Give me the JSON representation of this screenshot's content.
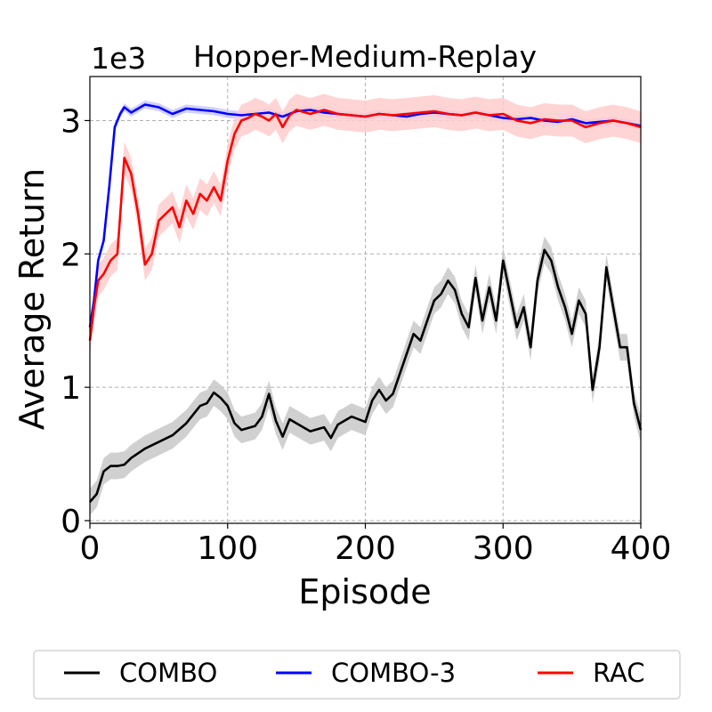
{
  "chart_data": {
    "type": "line",
    "title": "Hopper-Medium-Replay",
    "xlabel": "Episode",
    "ylabel": "Average Return",
    "y_scale_label": "1e3",
    "xlim": [
      0,
      400
    ],
    "ylim": [
      -0.02,
      3.33
    ],
    "xticks": [
      0,
      100,
      200,
      300,
      400
    ],
    "xtick_labels": [
      "0",
      "100",
      "200",
      "300",
      "400"
    ],
    "yticks": [
      0,
      1,
      2,
      3
    ],
    "ytick_labels": [
      "0",
      "1",
      "2",
      "3"
    ],
    "grid": true,
    "legend_position": "bottom",
    "series": [
      {
        "name": "COMBO",
        "color": "#000000",
        "band_color": "#c8c8c8",
        "band_halfwidth": 0.1,
        "x": [
          0,
          5,
          10,
          15,
          20,
          25,
          30,
          40,
          50,
          60,
          70,
          80,
          85,
          90,
          95,
          100,
          105,
          110,
          120,
          125,
          130,
          135,
          140,
          145,
          150,
          160,
          170,
          175,
          180,
          190,
          200,
          205,
          210,
          215,
          220,
          230,
          235,
          240,
          245,
          250,
          255,
          260,
          265,
          270,
          275,
          280,
          285,
          290,
          295,
          300,
          305,
          310,
          315,
          320,
          325,
          330,
          335,
          340,
          345,
          350,
          355,
          360,
          365,
          370,
          375,
          380,
          385,
          390,
          395,
          400
        ],
        "y": [
          0.14,
          0.2,
          0.37,
          0.41,
          0.41,
          0.42,
          0.47,
          0.54,
          0.59,
          0.64,
          0.73,
          0.86,
          0.88,
          0.96,
          0.92,
          0.86,
          0.73,
          0.68,
          0.71,
          0.78,
          0.95,
          0.75,
          0.63,
          0.76,
          0.73,
          0.67,
          0.7,
          0.62,
          0.72,
          0.78,
          0.74,
          0.9,
          0.98,
          0.9,
          0.95,
          1.25,
          1.4,
          1.35,
          1.5,
          1.65,
          1.7,
          1.8,
          1.73,
          1.55,
          1.45,
          1.82,
          1.5,
          1.75,
          1.5,
          1.95,
          1.7,
          1.45,
          1.6,
          1.3,
          1.8,
          2.03,
          1.95,
          1.75,
          1.6,
          1.4,
          1.65,
          1.55,
          0.98,
          1.3,
          1.9,
          1.6,
          1.3,
          1.3,
          0.88,
          0.68
        ]
      },
      {
        "name": "COMBO-3",
        "color": "#0000ff",
        "band_color": "#c8c8ff",
        "band_halfwidth": 0.03,
        "x": [
          0,
          3,
          6,
          10,
          14,
          18,
          22,
          25,
          30,
          40,
          50,
          60,
          70,
          80,
          90,
          100,
          110,
          120,
          130,
          140,
          150,
          160,
          170,
          180,
          190,
          200,
          210,
          220,
          230,
          240,
          250,
          260,
          270,
          280,
          290,
          300,
          310,
          320,
          330,
          340,
          350,
          360,
          370,
          380,
          390,
          400
        ],
        "y": [
          1.45,
          1.65,
          1.95,
          2.1,
          2.5,
          2.95,
          3.05,
          3.1,
          3.06,
          3.12,
          3.1,
          3.05,
          3.09,
          3.08,
          3.07,
          3.05,
          3.04,
          3.05,
          3.06,
          3.03,
          3.07,
          3.08,
          3.06,
          3.05,
          3.04,
          3.03,
          3.05,
          3.04,
          3.03,
          3.05,
          3.06,
          3.05,
          3.04,
          3.06,
          3.04,
          3.02,
          3.01,
          3.02,
          3.0,
          2.99,
          3.01,
          2.98,
          2.99,
          3.0,
          2.98,
          2.96
        ]
      },
      {
        "name": "RAC",
        "color": "#ff0000",
        "band_color": "#ffcccc",
        "band_halfwidth": 0.12,
        "x": [
          0,
          3,
          6,
          10,
          15,
          20,
          25,
          30,
          35,
          40,
          45,
          50,
          60,
          65,
          70,
          75,
          80,
          85,
          90,
          95,
          100,
          105,
          110,
          115,
          120,
          125,
          130,
          135,
          140,
          145,
          150,
          160,
          170,
          180,
          190,
          200,
          210,
          220,
          230,
          240,
          250,
          260,
          270,
          280,
          290,
          300,
          310,
          320,
          330,
          340,
          350,
          360,
          370,
          380,
          390,
          400
        ],
        "y": [
          1.35,
          1.6,
          1.8,
          1.85,
          1.95,
          2.0,
          2.72,
          2.6,
          2.3,
          1.92,
          2.0,
          2.25,
          2.35,
          2.2,
          2.4,
          2.3,
          2.45,
          2.4,
          2.5,
          2.4,
          2.7,
          2.9,
          3.0,
          3.02,
          3.05,
          3.03,
          3.0,
          3.05,
          2.95,
          3.04,
          3.08,
          3.05,
          3.08,
          3.05,
          3.04,
          3.03,
          3.05,
          3.04,
          3.05,
          3.06,
          3.07,
          3.05,
          3.04,
          3.06,
          3.04,
          3.05,
          3.0,
          2.98,
          3.01,
          3.0,
          3.0,
          2.95,
          2.98,
          3.0,
          2.98,
          2.95
        ]
      }
    ]
  }
}
